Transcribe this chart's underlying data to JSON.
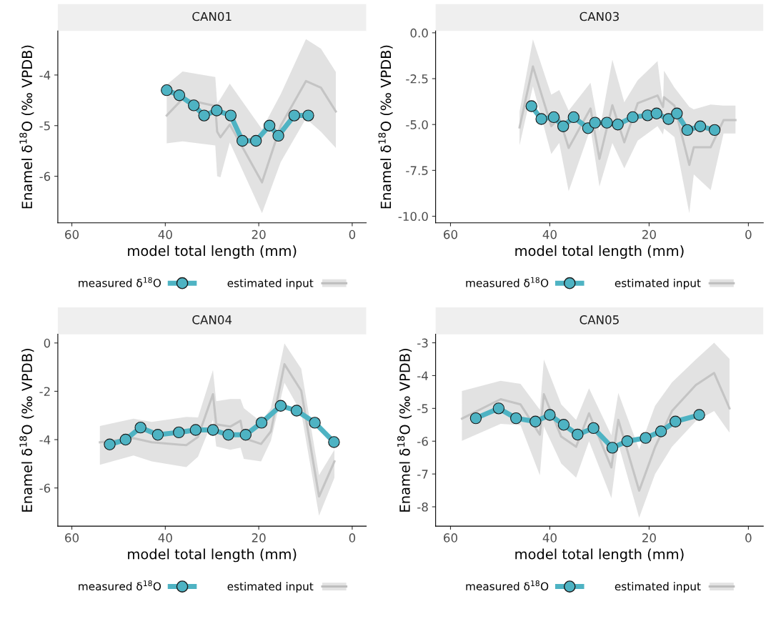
{
  "chart_data": [
    {
      "type": "line",
      "title": "CAN01",
      "xlabel": "model total length (mm)",
      "ylabel": "Enamel δ$^{18}$O (‰ VPDB)",
      "xlim": [
        63,
        -3
      ],
      "xticks": [
        60,
        40,
        20,
        0
      ],
      "ylim": [
        -6.92,
        -3.13
      ],
      "yticks": [
        -4,
        -5,
        -6
      ],
      "grid": false,
      "legend": "bottom",
      "series": [
        {
          "name": "measured δ$^{18}$O",
          "marker": "circle",
          "color": "#4eb3c3",
          "x": [
            39.7,
            37.0,
            33.9,
            31.7,
            29.0,
            26.0,
            23.5,
            20.6,
            17.7,
            15.8,
            12.4,
            9.4
          ],
          "values": [
            -4.3,
            -4.4,
            -4.6,
            -4.8,
            -4.7,
            -4.8,
            -5.3,
            -5.3,
            -5.0,
            -5.2,
            -4.8,
            -4.8
          ]
        },
        {
          "name": "estimated input",
          "marker": "none",
          "color": "#bebebe",
          "x": [
            39.7,
            36.3,
            29.3,
            28.9,
            28.2,
            26.2,
            19.3,
            15.3,
            9.9,
            6.7,
            3.5
          ],
          "values": [
            -4.8,
            -4.47,
            -4.61,
            -5.12,
            -5.23,
            -4.98,
            -6.12,
            -5.0,
            -4.12,
            -4.25,
            -4.72
          ],
          "lower": [
            -5.35,
            -5.31,
            -5.39,
            -6.0,
            -6.02,
            -5.33,
            -6.73,
            -5.72,
            -4.86,
            -5.12,
            -5.44
          ],
          "upper": [
            -4.19,
            -3.93,
            -4.04,
            -4.56,
            -4.47,
            -4.17,
            -5.07,
            -4.38,
            -3.29,
            -3.48,
            -3.94
          ]
        }
      ]
    },
    {
      "type": "line",
      "title": "CAN03",
      "xlabel": "model total length (mm)",
      "ylabel": "Enamel δ$^{18}$O (‰ VPDB)",
      "xlim": [
        63,
        -3
      ],
      "xticks": [
        60,
        40,
        20,
        0
      ],
      "ylim": [
        -10.36,
        0.1
      ],
      "yticks": [
        {
          "value": 0,
          "label": "0.0"
        },
        -2.5,
        {
          "value": -5,
          "label": "-5.0"
        },
        -7.5,
        {
          "value": -10,
          "label": "-10.0"
        }
      ],
      "grid": false,
      "legend": "bottom",
      "series": [
        {
          "name": "measured δ$^{18}$O",
          "marker": "circle",
          "color": "#4eb3c3",
          "x": [
            43.7,
            41.7,
            39.2,
            37.3,
            35.2,
            32.3,
            30.9,
            28.5,
            26.3,
            23.3,
            20.3,
            18.5,
            16.1,
            14.4,
            12.3,
            9.7,
            6.8
          ],
          "values": [
            -4.0,
            -4.7,
            -4.6,
            -5.1,
            -4.6,
            -5.2,
            -4.9,
            -4.9,
            -5.0,
            -4.6,
            -4.5,
            -4.4,
            -4.7,
            -4.4,
            -5.3,
            -5.1,
            -5.3
          ]
        },
        {
          "name": "estimated input",
          "marker": "none",
          "color": "#bebebe",
          "x": [
            46.1,
            43.4,
            39.7,
            38.1,
            36.2,
            31.8,
            30.0,
            27.4,
            25.0,
            22.3,
            18.3,
            17.2,
            17.0,
            14.9,
            11.9,
            11.0,
            7.6,
            5.0,
            2.6
          ],
          "values": [
            -5.16,
            -1.84,
            -5.09,
            -4.63,
            -6.28,
            -4.13,
            -6.87,
            -3.95,
            -5.97,
            -3.84,
            -3.42,
            -4.04,
            -3.51,
            -3.97,
            -7.2,
            -6.24,
            -6.24,
            -4.76,
            -4.76
          ],
          "lower": [
            -6.14,
            -2.92,
            -6.61,
            -6.01,
            -8.64,
            -5.22,
            -8.38,
            -6.01,
            -7.39,
            -5.88,
            -5.09,
            -5.55,
            -5.22,
            -5.68,
            -9.83,
            -7.72,
            -8.58,
            -5.49,
            -5.49
          ],
          "upper": [
            -4.3,
            -0.36,
            -3.38,
            -3.12,
            -4.24,
            -2.72,
            -5.36,
            -1.47,
            -3.78,
            -2.59,
            -1.54,
            -3.91,
            -2.07,
            -2.99,
            -4.04,
            -4.17,
            -3.91,
            -3.97,
            -3.97
          ]
        }
      ]
    },
    {
      "type": "line",
      "title": "CAN04",
      "xlabel": "model total length (mm)",
      "ylabel": "Enamel δ$^{18}$O (‰ VPDB)",
      "xlim": [
        63,
        -3
      ],
      "xticks": [
        60,
        40,
        20,
        0
      ],
      "ylim": [
        -7.58,
        0.36
      ],
      "yticks": [
        0,
        -2,
        -4,
        -6
      ],
      "grid": false,
      "legend": "bottom",
      "series": [
        {
          "name": "measured δ$^{18}$O",
          "marker": "circle",
          "color": "#4eb3c3",
          "x": [
            51.9,
            48.5,
            45.3,
            41.6,
            37.1,
            33.5,
            29.8,
            26.5,
            22.8,
            19.4,
            15.3,
            11.9,
            8.0,
            3.9
          ],
          "values": [
            -4.2,
            -4.0,
            -3.5,
            -3.8,
            -3.7,
            -3.6,
            -3.6,
            -3.8,
            -3.8,
            -3.3,
            -2.6,
            -2.8,
            -3.3,
            -4.1
          ]
        },
        {
          "name": "estimated input",
          "marker": "none",
          "color": "#bebebe",
          "x": [
            54.0,
            46.8,
            42.9,
            35.5,
            33.0,
            29.8,
            29.1,
            26.1,
            23.9,
            23.2,
            19.5,
            17.4,
            14.5,
            10.9,
            7.1,
            3.8
          ],
          "values": [
            -4.11,
            -3.94,
            -4.11,
            -4.23,
            -3.89,
            -2.12,
            -3.37,
            -3.46,
            -3.22,
            -3.94,
            -4.18,
            -3.66,
            -0.88,
            -1.98,
            -6.35,
            -4.9
          ],
          "lower": [
            -5.04,
            -4.66,
            -4.9,
            -5.14,
            -4.71,
            -3.18,
            -4.28,
            -4.42,
            -4.33,
            -4.8,
            -4.9,
            -4.04,
            -1.65,
            -2.89,
            -7.15,
            -5.57
          ],
          "upper": [
            -3.44,
            -3.13,
            -3.27,
            -3.06,
            -3.08,
            -1.12,
            -2.41,
            -2.32,
            -2.32,
            -2.7,
            -3.27,
            -2.7,
            -0.02,
            -1.07,
            -5.47,
            -4.42
          ]
        }
      ]
    },
    {
      "type": "line",
      "title": "CAN05",
      "xlabel": "model total length (mm)",
      "ylabel": "Enamel δ$^{18}$O (‰ VPDB)",
      "xlim": [
        63,
        -3
      ],
      "xticks": [
        60,
        40,
        20,
        0
      ],
      "ylim": [
        -8.59,
        -2.74
      ],
      "yticks": [
        -3,
        -4,
        -5,
        -6,
        -7,
        -8
      ],
      "grid": false,
      "legend": "bottom",
      "series": [
        {
          "name": "measured δ$^{18}$O",
          "marker": "circle",
          "color": "#4eb3c3",
          "x": [
            54.9,
            50.3,
            46.8,
            42.9,
            40.0,
            37.2,
            34.4,
            31.2,
            27.4,
            24.4,
            20.7,
            17.6,
            14.7,
            9.9
          ],
          "values": [
            -5.3,
            -5.0,
            -5.3,
            -5.4,
            -5.2,
            -5.5,
            -5.8,
            -5.6,
            -6.2,
            -6.0,
            -5.9,
            -5.7,
            -5.4,
            -5.2
          ]
        },
        {
          "name": "estimated input",
          "marker": "none",
          "color": "#bebebe",
          "x": [
            57.7,
            49.9,
            45.9,
            42.0,
            41.2,
            37.7,
            34.7,
            32.1,
            27.6,
            26.2,
            22.0,
            18.8,
            15.4,
            10.6,
            6.9,
            3.8
          ],
          "values": [
            -5.31,
            -4.72,
            -4.88,
            -5.8,
            -4.57,
            -5.86,
            -6.17,
            -5.15,
            -6.8,
            -5.35,
            -7.51,
            -6.18,
            -5.08,
            -4.29,
            -3.92,
            -5.0
          ],
          "lower": [
            -5.99,
            -5.47,
            -5.51,
            -7.04,
            -5.55,
            -6.68,
            -7.11,
            -6.0,
            -7.74,
            -6.08,
            -8.33,
            -7.0,
            -6.17,
            -5.39,
            -5.08,
            -5.74
          ],
          "upper": [
            -4.47,
            -4.16,
            -4.25,
            -5.04,
            -3.51,
            -4.88,
            -5.35,
            -4.39,
            -5.82,
            -4.53,
            -6.25,
            -4.92,
            -4.21,
            -3.51,
            -3.0,
            -3.49
          ]
        }
      ]
    }
  ]
}
